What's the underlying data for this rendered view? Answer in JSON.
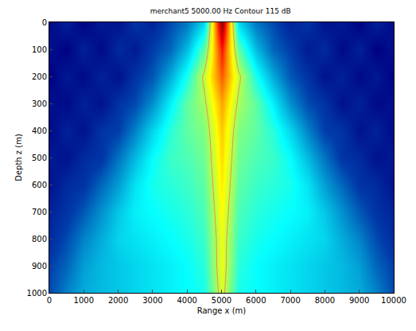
{
  "chart_data": {
    "type": "heatmap",
    "title": "merchant5 5000.00 Hz Contour 115 dB",
    "x_label": "Range x (m)",
    "y_label": "Depth z (m)",
    "x": [
      0,
      500,
      1000,
      1500,
      2000,
      2500,
      3000,
      3500,
      4000,
      4500,
      5000,
      5500,
      6000,
      6500,
      7000,
      7500,
      8000,
      8500,
      9000,
      9500,
      10000
    ],
    "y": [
      0,
      100,
      200,
      300,
      400,
      500,
      600,
      700,
      800,
      900,
      1000
    ],
    "z": [
      [
        85,
        88,
        84,
        87,
        86,
        90,
        88,
        92,
        95,
        102,
        140,
        102,
        95,
        92,
        88,
        90,
        86,
        87,
        84,
        88,
        85
      ],
      [
        86,
        84,
        88,
        85,
        89,
        87,
        91,
        94,
        100,
        110,
        132,
        110,
        100,
        94,
        91,
        87,
        89,
        85,
        88,
        84,
        86
      ],
      [
        84,
        87,
        85,
        88,
        86,
        90,
        93,
        99,
        106,
        116,
        128,
        116,
        106,
        99,
        93,
        90,
        86,
        88,
        85,
        87,
        84
      ],
      [
        86,
        85,
        88,
        86,
        90,
        92,
        97,
        104,
        110,
        114,
        124,
        114,
        110,
        104,
        97,
        92,
        90,
        86,
        88,
        85,
        86
      ],
      [
        85,
        88,
        86,
        90,
        91,
        96,
        102,
        107,
        110,
        112,
        122,
        112,
        110,
        107,
        102,
        96,
        91,
        90,
        86,
        88,
        85
      ],
      [
        87,
        86,
        89,
        90,
        95,
        100,
        105,
        108,
        109,
        111,
        121,
        111,
        109,
        108,
        105,
        100,
        95,
        90,
        89,
        86,
        87
      ],
      [
        86,
        89,
        90,
        94,
        98,
        103,
        106,
        107,
        108,
        110,
        120,
        110,
        108,
        107,
        106,
        103,
        98,
        94,
        90,
        89,
        86
      ],
      [
        88,
        90,
        93,
        97,
        101,
        104,
        105,
        106,
        107,
        109,
        119,
        109,
        107,
        106,
        105,
        104,
        101,
        97,
        93,
        90,
        88
      ],
      [
        89,
        92,
        96,
        99,
        102,
        103,
        104,
        105,
        106,
        108,
        118,
        108,
        106,
        105,
        104,
        103,
        102,
        99,
        96,
        92,
        89
      ],
      [
        91,
        94,
        98,
        100,
        101,
        102,
        103,
        104,
        105,
        107,
        118,
        107,
        105,
        104,
        103,
        102,
        101,
        100,
        98,
        94,
        91
      ],
      [
        92,
        96,
        99,
        100,
        101,
        102,
        103,
        104,
        105,
        106,
        117,
        106,
        105,
        104,
        103,
        102,
        101,
        100,
        99,
        96,
        92
      ]
    ],
    "contour": 115,
    "xlim": [
      0,
      10000
    ],
    "xticks": [
      0,
      1000,
      2000,
      3000,
      4000,
      5000,
      6000,
      7000,
      8000,
      9000,
      10000
    ],
    "ylim": [
      1000,
      0
    ],
    "yticks": [
      0,
      100,
      200,
      300,
      400,
      500,
      600,
      700,
      800,
      900,
      1000
    ]
  }
}
